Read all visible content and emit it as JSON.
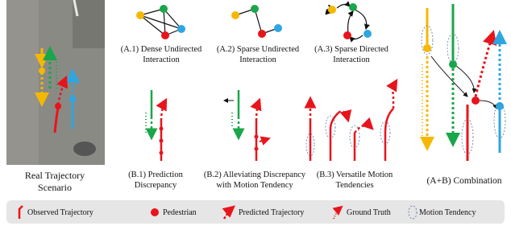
{
  "scenario": {
    "lines": [
      "Real Trajectory",
      "Scenario"
    ]
  },
  "panels": [
    {
      "lines": [
        "(A.1) Dense Undirected",
        "Interaction"
      ]
    },
    {
      "lines": [
        "(A.2) Sparse Undirected",
        "Interaction"
      ]
    },
    {
      "lines": [
        "(A.3) Sparse Directed",
        "Interaction"
      ]
    },
    {
      "lines": [
        "(B.1) Prediction",
        "Discrepancy"
      ]
    },
    {
      "lines": [
        "(B.2) Alleviating Discrepancy",
        "with Motion Tendency"
      ]
    },
    {
      "lines": [
        "(B.3) Versatile Motion",
        "Tendencies"
      ]
    }
  ],
  "combination": "(A+B) Combination",
  "legend": [
    "Observed Trajectory",
    "Pedestrian",
    "Predicted Trajectory",
    "Ground Truth",
    "Motion Tendency"
  ]
}
